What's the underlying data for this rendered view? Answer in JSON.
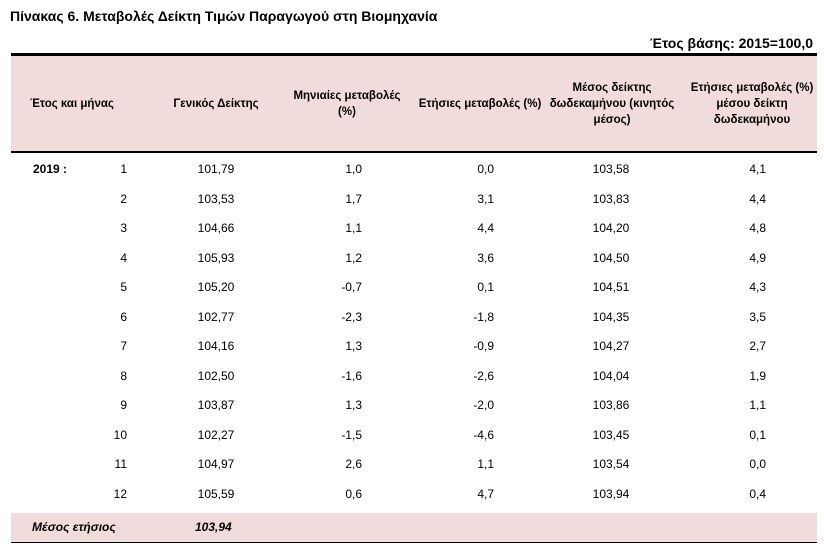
{
  "title": "Πίνακας 6. Μεταβολές Δείκτη Τιμών Παραγωγού στη Βιομηχανία",
  "base_year": "Έτος βάσης: 2015=100,0",
  "headers": {
    "period": "Έτος και μήνας",
    "general_index": "Γενικός Δείκτης",
    "monthly_change": "Μηνιαίες μεταβολές (%)",
    "annual_change": "Ετήσιες μεταβολές (%)",
    "avg_12m": "Μέσος δείκτης δωδεκαμήνου (κινητός μέσος)",
    "annual_change_avg": "Ετήσιες μεταβολές (%) μέσου δείκτη δωδεκαμήνου"
  },
  "rows": [
    {
      "year": "2019 :",
      "month": "1",
      "general_index": "101,79",
      "monthly_change": "1,0",
      "annual_change": "0,0",
      "avg_12m": "103,58",
      "annual_change_avg": "4,1"
    },
    {
      "year": "",
      "month": "2",
      "general_index": "103,53",
      "monthly_change": "1,7",
      "annual_change": "3,1",
      "avg_12m": "103,83",
      "annual_change_avg": "4,4"
    },
    {
      "year": "",
      "month": "3",
      "general_index": "104,66",
      "monthly_change": "1,1",
      "annual_change": "4,4",
      "avg_12m": "104,20",
      "annual_change_avg": "4,8"
    },
    {
      "year": "",
      "month": "4",
      "general_index": "105,93",
      "monthly_change": "1,2",
      "annual_change": "3,6",
      "avg_12m": "104,50",
      "annual_change_avg": "4,9"
    },
    {
      "year": "",
      "month": "5",
      "general_index": "105,20",
      "monthly_change": "-0,7",
      "annual_change": "0,1",
      "avg_12m": "104,51",
      "annual_change_avg": "4,3"
    },
    {
      "year": "",
      "month": "6",
      "general_index": "102,77",
      "monthly_change": "-2,3",
      "annual_change": "-1,8",
      "avg_12m": "104,35",
      "annual_change_avg": "3,5"
    },
    {
      "year": "",
      "month": "7",
      "general_index": "104,16",
      "monthly_change": "1,3",
      "annual_change": "-0,9",
      "avg_12m": "104,27",
      "annual_change_avg": "2,7"
    },
    {
      "year": "",
      "month": "8",
      "general_index": "102,50",
      "monthly_change": "-1,6",
      "annual_change": "-2,6",
      "avg_12m": "104,04",
      "annual_change_avg": "1,9"
    },
    {
      "year": "",
      "month": "9",
      "general_index": "103,87",
      "monthly_change": "1,3",
      "annual_change": "-2,0",
      "avg_12m": "103,86",
      "annual_change_avg": "1,1"
    },
    {
      "year": "",
      "month": "10",
      "general_index": "102,27",
      "monthly_change": "-1,5",
      "annual_change": "-4,6",
      "avg_12m": "103,45",
      "annual_change_avg": "0,1"
    },
    {
      "year": "",
      "month": "11",
      "general_index": "104,97",
      "monthly_change": "2,6",
      "annual_change": "1,1",
      "avg_12m": "103,54",
      "annual_change_avg": "0,0"
    },
    {
      "year": "",
      "month": "12",
      "general_index": "105,59",
      "monthly_change": "0,6",
      "annual_change": "4,7",
      "avg_12m": "103,94",
      "annual_change_avg": "0,4"
    }
  ],
  "footer": {
    "label": "Μέσος ετήσιος",
    "value": "103,94"
  },
  "colors": {
    "header_background": "#f2dcdb",
    "rule": "#000000"
  }
}
